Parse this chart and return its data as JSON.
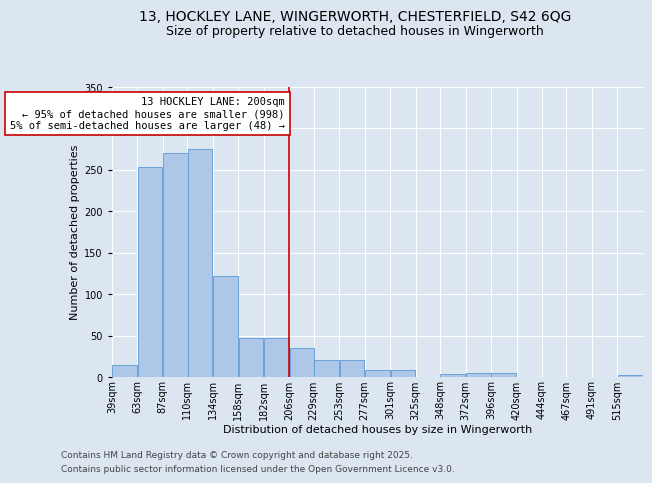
{
  "title_line1": "13, HOCKLEY LANE, WINGERWORTH, CHESTERFIELD, S42 6QG",
  "title_line2": "Size of property relative to detached houses in Wingerworth",
  "xlabel": "Distribution of detached houses by size in Wingerworth",
  "ylabel": "Number of detached properties",
  "bar_color": "#aec6e8",
  "bar_edge_color": "#5b9bd5",
  "background_color": "#dce6f1",
  "plot_background": "#dce6f1",
  "bin_labels": [
    "39sqm",
    "63sqm",
    "87sqm",
    "110sqm",
    "134sqm",
    "158sqm",
    "182sqm",
    "206sqm",
    "229sqm",
    "253sqm",
    "277sqm",
    "301sqm",
    "325sqm",
    "348sqm",
    "372sqm",
    "396sqm",
    "420sqm",
    "444sqm",
    "467sqm",
    "491sqm",
    "515sqm"
  ],
  "bin_edges": [
    39,
    63,
    87,
    110,
    134,
    158,
    182,
    206,
    229,
    253,
    277,
    301,
    325,
    348,
    372,
    396,
    420,
    444,
    467,
    491,
    515
  ],
  "bar_heights": [
    15,
    253,
    270,
    275,
    122,
    47,
    47,
    35,
    20,
    20,
    9,
    9,
    0,
    4,
    5,
    5,
    0,
    0,
    0,
    0,
    2
  ],
  "vline_x": 206,
  "ylim": [
    0,
    350
  ],
  "yticks": [
    0,
    50,
    100,
    150,
    200,
    250,
    300,
    350
  ],
  "vline_color": "#cc0000",
  "annotation_text": "13 HOCKLEY LANE: 200sqm\n← 95% of detached houses are smaller (998)\n5% of semi-detached houses are larger (48) →",
  "annotation_box_color": "#ffffff",
  "annotation_border_color": "#cc0000",
  "footer_line1": "Contains HM Land Registry data © Crown copyright and database right 2025.",
  "footer_line2": "Contains public sector information licensed under the Open Government Licence v3.0.",
  "title_fontsize": 10,
  "subtitle_fontsize": 9,
  "axis_label_fontsize": 8,
  "tick_fontsize": 7,
  "annotation_fontsize": 7.5,
  "footer_fontsize": 6.5
}
